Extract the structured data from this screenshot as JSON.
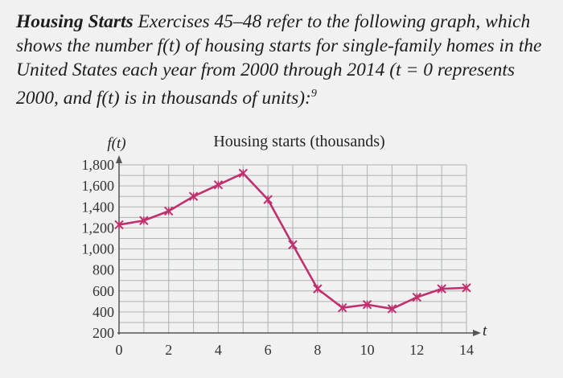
{
  "header": {
    "lead": "Housing Starts",
    "text": "Exercises 45–48 refer to the following graph, which shows the number f(t) of housing starts for single-family homes in the United States each year from 2000 through 2014 (t = 0 represents 2000, and f(t) is in thousands of units):",
    "footnote": "9"
  },
  "chart_data": {
    "type": "line",
    "title": "Housing starts (thousands)",
    "ylabel": "f(t)",
    "xlabel": "t",
    "x": [
      0,
      1,
      2,
      3,
      4,
      5,
      6,
      7,
      8,
      9,
      10,
      11,
      12,
      13,
      14
    ],
    "values": [
      1230,
      1270,
      1360,
      1500,
      1610,
      1720,
      1470,
      1040,
      620,
      440,
      470,
      430,
      540,
      620,
      630
    ],
    "xticks": [
      0,
      2,
      4,
      6,
      8,
      10,
      12,
      14
    ],
    "xtick_labels": [
      "0",
      "2",
      "4",
      "6",
      "8",
      "10",
      "12",
      "14"
    ],
    "yticks": [
      200,
      400,
      600,
      800,
      1000,
      1200,
      1400,
      1600,
      1800
    ],
    "ytick_labels": [
      "200",
      "400",
      "600",
      "800",
      "1,000",
      "1,200",
      "1,400",
      "1,600",
      "1,800"
    ],
    "xlim": [
      0,
      14
    ],
    "ylim": [
      200,
      1800
    ],
    "grid": true,
    "series_color": "#c0306e"
  }
}
